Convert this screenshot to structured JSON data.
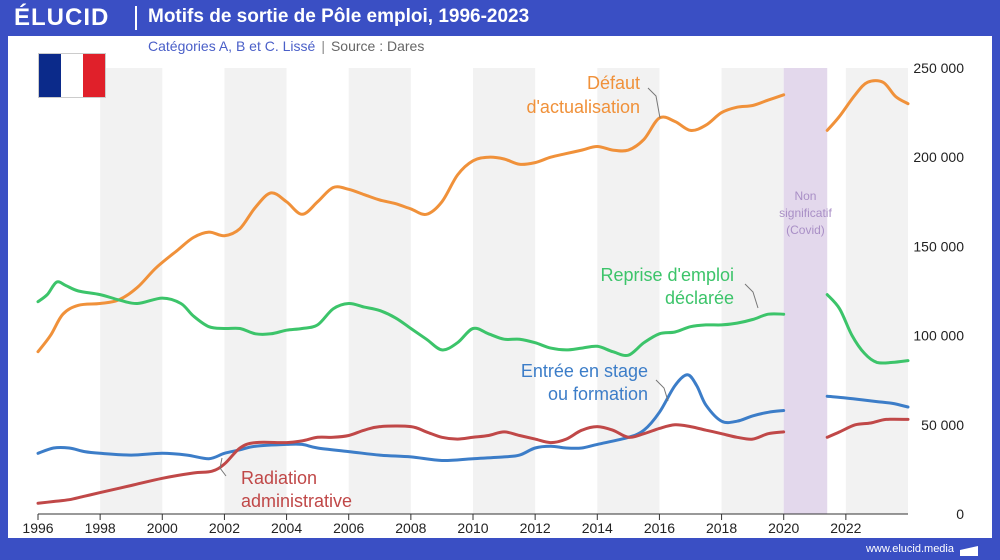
{
  "header": {
    "logo": "ÉLUCID",
    "title": "Motifs de sortie de Pôle emploi, 1996-2023"
  },
  "subtitle": {
    "text": "Catégories A, B et C. Lissé",
    "source": "Source : Dares"
  },
  "footer": {
    "url": "www.elucid.media"
  },
  "colors": {
    "orange": "#f0913a",
    "green": "#3cc46a",
    "blue": "#3c7dc8",
    "red": "#c04848",
    "covid": "#e3d8ec",
    "band": "#f2f2f2"
  },
  "flag": {
    "colors": [
      "#0b2a8a",
      "#ffffff",
      "#e0202a"
    ]
  },
  "chart_data": {
    "type": "line",
    "title": "Motifs de sortie de Pôle emploi, 1996-2023",
    "xlim": [
      1996,
      2024
    ],
    "ylim": [
      0,
      250000
    ],
    "x_ticks": [
      1996,
      1998,
      2000,
      2002,
      2004,
      2006,
      2008,
      2010,
      2012,
      2014,
      2016,
      2018,
      2020,
      2022
    ],
    "x_tick_labels": [
      "1996",
      "1998",
      "2000",
      "2002",
      "2004",
      "2006",
      "2008",
      "2010",
      "2012",
      "2014",
      "2016",
      "2018",
      "2020",
      "2022"
    ],
    "y_ticks": [
      0,
      50000,
      100000,
      150000,
      200000,
      250000
    ],
    "y_tick_labels": [
      "0",
      "50 000",
      "100 000",
      "150 000",
      "200 000",
      "250 000"
    ],
    "covid_span": [
      2020,
      2021.4
    ],
    "covid_label": [
      "Non",
      "significatif",
      "(Covid)"
    ],
    "series": [
      {
        "name": "Défaut d'actualisation",
        "color_key": "orange",
        "label_lines": [
          "Défaut",
          "d'actualisation"
        ],
        "points": [
          [
            1996,
            91000
          ],
          [
            1996.4,
            100000
          ],
          [
            1996.8,
            112000
          ],
          [
            1997.3,
            117000
          ],
          [
            1998,
            118000
          ],
          [
            1998.6,
            120000
          ],
          [
            1999.2,
            127000
          ],
          [
            1999.8,
            138000
          ],
          [
            2000.5,
            148000
          ],
          [
            2001,
            155000
          ],
          [
            2001.5,
            158000
          ],
          [
            2002,
            156000
          ],
          [
            2002.5,
            160000
          ],
          [
            2003,
            172000
          ],
          [
            2003.5,
            180000
          ],
          [
            2004,
            175000
          ],
          [
            2004.5,
            168000
          ],
          [
            2005,
            175000
          ],
          [
            2005.5,
            183000
          ],
          [
            2006,
            182000
          ],
          [
            2006.5,
            179000
          ],
          [
            2007,
            176000
          ],
          [
            2007.5,
            174000
          ],
          [
            2008,
            171000
          ],
          [
            2008.5,
            168000
          ],
          [
            2009,
            175000
          ],
          [
            2009.5,
            190000
          ],
          [
            2010,
            198000
          ],
          [
            2010.5,
            200000
          ],
          [
            2011,
            199000
          ],
          [
            2011.5,
            196000
          ],
          [
            2012,
            197000
          ],
          [
            2012.5,
            200000
          ],
          [
            2013,
            202000
          ],
          [
            2013.5,
            204000
          ],
          [
            2014,
            206000
          ],
          [
            2014.5,
            204000
          ],
          [
            2015,
            204000
          ],
          [
            2015.5,
            210000
          ],
          [
            2016,
            222000
          ],
          [
            2016.5,
            220000
          ],
          [
            2017,
            215000
          ],
          [
            2017.5,
            218000
          ],
          [
            2018,
            225000
          ],
          [
            2018.5,
            228000
          ],
          [
            2019,
            229000
          ],
          [
            2019.5,
            232000
          ],
          [
            2020,
            235000
          ],
          null,
          [
            2021.4,
            215000
          ],
          [
            2021.8,
            223000
          ],
          [
            2022.3,
            235000
          ],
          [
            2022.7,
            242000
          ],
          [
            2023.2,
            242000
          ],
          [
            2023.6,
            234000
          ],
          [
            2024,
            230000
          ]
        ]
      },
      {
        "name": "Reprise d'emploi déclarée",
        "color_key": "green",
        "label_lines": [
          "Reprise d'emploi",
          "déclarée"
        ],
        "points": [
          [
            1996,
            119000
          ],
          [
            1996.3,
            123000
          ],
          [
            1996.6,
            130000
          ],
          [
            1996.9,
            128000
          ],
          [
            1997.3,
            125000
          ],
          [
            1998,
            123000
          ],
          [
            1998.6,
            120000
          ],
          [
            1999.2,
            118000
          ],
          [
            2000,
            121000
          ],
          [
            2000.6,
            118000
          ],
          [
            2001,
            111000
          ],
          [
            2001.5,
            105000
          ],
          [
            2002,
            104000
          ],
          [
            2002.5,
            104000
          ],
          [
            2003,
            101000
          ],
          [
            2003.5,
            101000
          ],
          [
            2004,
            103000
          ],
          [
            2004.5,
            104000
          ],
          [
            2005,
            106000
          ],
          [
            2005.5,
            115000
          ],
          [
            2006,
            118000
          ],
          [
            2006.5,
            116000
          ],
          [
            2007,
            114000
          ],
          [
            2007.5,
            110000
          ],
          [
            2008,
            104000
          ],
          [
            2008.5,
            98000
          ],
          [
            2009,
            92000
          ],
          [
            2009.5,
            96000
          ],
          [
            2010,
            104000
          ],
          [
            2010.5,
            101000
          ],
          [
            2011,
            98000
          ],
          [
            2011.5,
            98000
          ],
          [
            2012,
            96000
          ],
          [
            2012.5,
            93000
          ],
          [
            2013,
            92000
          ],
          [
            2013.5,
            93000
          ],
          [
            2014,
            94000
          ],
          [
            2014.5,
            91000
          ],
          [
            2015,
            89000
          ],
          [
            2015.5,
            96000
          ],
          [
            2016,
            101000
          ],
          [
            2016.5,
            102000
          ],
          [
            2017,
            105000
          ],
          [
            2017.5,
            106000
          ],
          [
            2018,
            106000
          ],
          [
            2018.5,
            107000
          ],
          [
            2019,
            109000
          ],
          [
            2019.5,
            112000
          ],
          [
            2020,
            112000
          ],
          null,
          [
            2021.4,
            123000
          ],
          [
            2021.8,
            115000
          ],
          [
            2022.2,
            100000
          ],
          [
            2022.6,
            90000
          ],
          [
            2023,
            85000
          ],
          [
            2023.5,
            85000
          ],
          [
            2024,
            86000
          ]
        ]
      },
      {
        "name": "Entrée en stage ou formation",
        "color_key": "blue",
        "label_lines": [
          "Entrée en stage",
          "ou formation"
        ],
        "points": [
          [
            1996,
            34000
          ],
          [
            1996.5,
            37000
          ],
          [
            1997,
            37000
          ],
          [
            1997.5,
            35000
          ],
          [
            1998,
            34000
          ],
          [
            1999,
            33000
          ],
          [
            2000,
            34000
          ],
          [
            2000.8,
            33000
          ],
          [
            2001.5,
            31000
          ],
          [
            2002,
            34000
          ],
          [
            2002.5,
            36000
          ],
          [
            2003,
            38000
          ],
          [
            2004,
            39000
          ],
          [
            2004.5,
            39000
          ],
          [
            2005,
            37000
          ],
          [
            2006,
            35000
          ],
          [
            2007,
            33000
          ],
          [
            2008,
            32000
          ],
          [
            2009,
            30000
          ],
          [
            2010,
            31000
          ],
          [
            2011,
            32000
          ],
          [
            2011.5,
            33000
          ],
          [
            2012,
            37000
          ],
          [
            2012.5,
            38000
          ],
          [
            2013,
            37000
          ],
          [
            2013.5,
            37000
          ],
          [
            2014,
            39000
          ],
          [
            2015,
            43000
          ],
          [
            2015.5,
            47000
          ],
          [
            2016,
            57000
          ],
          [
            2016.5,
            72000
          ],
          [
            2016.9,
            78000
          ],
          [
            2017.2,
            72000
          ],
          [
            2017.5,
            61000
          ],
          [
            2018,
            52000
          ],
          [
            2018.5,
            52000
          ],
          [
            2019,
            55000
          ],
          [
            2019.5,
            57000
          ],
          [
            2020,
            58000
          ],
          null,
          [
            2021.4,
            66000
          ],
          [
            2022,
            65000
          ],
          [
            2022.5,
            64000
          ],
          [
            2023,
            63000
          ],
          [
            2023.5,
            62000
          ],
          [
            2024,
            60000
          ]
        ]
      },
      {
        "name": "Radiation administrative",
        "color_key": "red",
        "label_lines": [
          "Radiation",
          "administrative"
        ],
        "points": [
          [
            1996,
            6000
          ],
          [
            1996.5,
            7000
          ],
          [
            1997,
            8000
          ],
          [
            1997.5,
            10000
          ],
          [
            1998,
            12000
          ],
          [
            1999,
            16000
          ],
          [
            2000,
            20000
          ],
          [
            2001,
            23000
          ],
          [
            2001.6,
            24000
          ],
          [
            2002,
            28000
          ],
          [
            2002.5,
            37000
          ],
          [
            2003,
            40000
          ],
          [
            2004,
            40000
          ],
          [
            2004.5,
            41000
          ],
          [
            2005,
            43000
          ],
          [
            2005.5,
            43000
          ],
          [
            2006,
            44000
          ],
          [
            2006.5,
            47000
          ],
          [
            2007,
            49000
          ],
          [
            2008,
            49000
          ],
          [
            2008.5,
            46000
          ],
          [
            2009,
            43000
          ],
          [
            2009.5,
            42000
          ],
          [
            2010,
            43000
          ],
          [
            2010.5,
            44000
          ],
          [
            2011,
            46000
          ],
          [
            2011.5,
            44000
          ],
          [
            2012,
            42000
          ],
          [
            2012.5,
            40000
          ],
          [
            2013,
            42000
          ],
          [
            2013.5,
            47000
          ],
          [
            2014,
            49000
          ],
          [
            2014.5,
            47000
          ],
          [
            2015,
            43000
          ],
          [
            2015.5,
            45000
          ],
          [
            2016,
            48000
          ],
          [
            2016.5,
            50000
          ],
          [
            2017,
            49000
          ],
          [
            2017.5,
            47000
          ],
          [
            2018,
            45000
          ],
          [
            2018.5,
            43000
          ],
          [
            2019,
            42000
          ],
          [
            2019.5,
            45000
          ],
          [
            2020,
            46000
          ],
          null,
          [
            2021.4,
            43000
          ],
          [
            2021.8,
            46000
          ],
          [
            2022.3,
            50000
          ],
          [
            2022.8,
            51000
          ],
          [
            2023.3,
            53000
          ],
          [
            2024,
            53000
          ]
        ]
      }
    ]
  }
}
